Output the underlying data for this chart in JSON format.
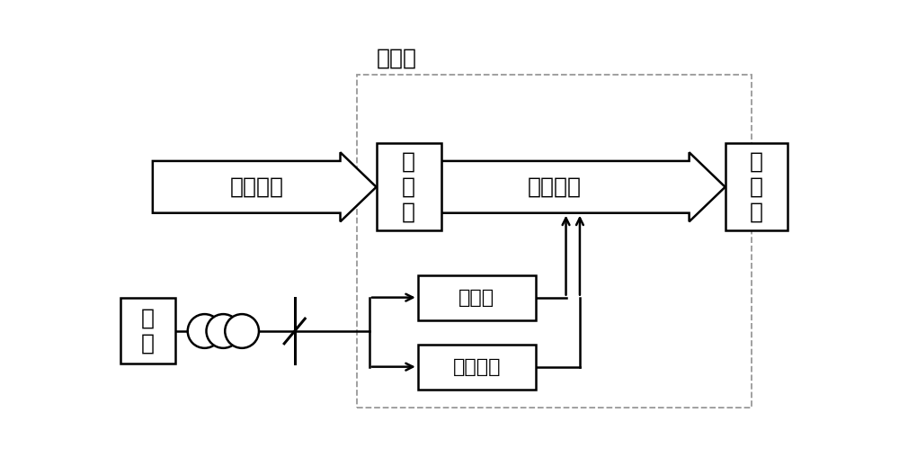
{
  "bg_color": "#ffffff",
  "fig_width": 10.0,
  "fig_height": 5.19,
  "dpi": 100,
  "labels": {
    "station": "换热站",
    "primary_net": "一次热网",
    "heat_exchanger": "换\n热\n器",
    "secondary_net": "二次热网",
    "heat_load_box": "热\n负\n荷",
    "grid": "电\n网",
    "boiler": "电锅炉",
    "storage": "蓄热装置"
  },
  "font_size_main": 18,
  "font_size_label": 16,
  "arrow_color": "#000000",
  "box_color": "#000000",
  "dashed_color": "#999999",
  "line_color": "#000000"
}
